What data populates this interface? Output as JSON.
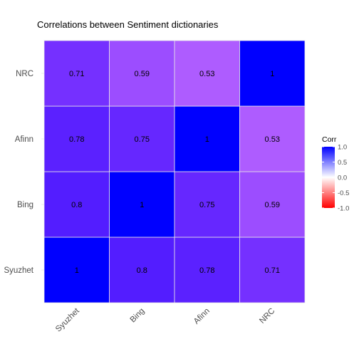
{
  "chart_data": {
    "type": "heatmap",
    "title": "Correlations between Sentiment dictionaries",
    "xlabel": "",
    "ylabel": "",
    "x_categories": [
      "Syuzhet",
      "Bing",
      "Afinn",
      "NRC"
    ],
    "y_categories": [
      "Syuzhet",
      "Bing",
      "Afinn",
      "NRC"
    ],
    "values": [
      [
        1,
        0.8,
        0.78,
        0.71
      ],
      [
        0.8,
        1,
        0.75,
        0.59
      ],
      [
        0.78,
        0.75,
        1,
        0.53
      ],
      [
        0.71,
        0.59,
        0.53,
        1
      ]
    ],
    "value_labels": [
      [
        "1",
        "0.8",
        "0.78",
        "0.71"
      ],
      [
        "0.8",
        "1",
        "0.75",
        "0.59"
      ],
      [
        "0.78",
        "0.75",
        "1",
        "0.53"
      ],
      [
        "0.71",
        "0.59",
        "0.53",
        "1"
      ]
    ],
    "legend": {
      "title": "Corr",
      "range": [
        -1,
        1
      ],
      "ticks": [
        "1.0",
        "0.5",
        "0.0",
        "-0.5",
        "-1.0"
      ],
      "tick_values": [
        1,
        0.5,
        0,
        -0.5,
        -1
      ],
      "position": "right",
      "colors": {
        "low": "#ff0000",
        "mid": "#ffffff",
        "high": "#0000ff"
      }
    },
    "grid": true
  }
}
